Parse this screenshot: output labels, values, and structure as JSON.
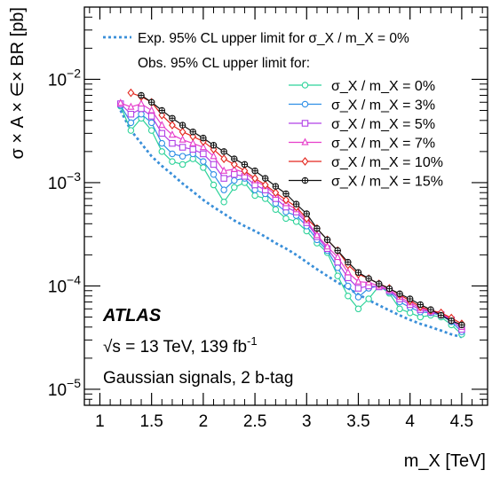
{
  "chart_data": {
    "type": "line",
    "xlabel": "m_X [TeV]",
    "ylabel": "σ × A × ∈× BR [pb]",
    "xlim": [
      0.85,
      4.75
    ],
    "ylim": [
      7e-06,
      0.05
    ],
    "xscale": "linear",
    "yscale": "log",
    "grid": false,
    "xticks": [
      1,
      1.5,
      2,
      2.5,
      3,
      3.5,
      4,
      4.5
    ],
    "xtick_labels": [
      "1",
      "1.5",
      "2",
      "2.5",
      "3",
      "3.5",
      "4",
      "4.5"
    ],
    "yticks": [
      1e-05,
      0.0001,
      0.001,
      0.01
    ],
    "legend_position": "top-right",
    "legend_header": "Obs. 95% CL upper limit for:",
    "annotations": {
      "experiment": "ATLAS",
      "energy": "√s = 13 TeV, 139 fb",
      "energy_sup": "-1",
      "selection": "Gaussian signals, 2 b-tag"
    },
    "expected": {
      "name": "Exp. 95% CL upper limit for σ_X / m_X = 0%",
      "color": "#3a8fd9",
      "style": "dotted",
      "x": [
        1.2,
        1.3,
        1.4,
        1.5,
        1.6,
        1.7,
        1.8,
        1.9,
        2.0,
        2.1,
        2.2,
        2.3,
        2.4,
        2.5,
        2.6,
        2.7,
        2.8,
        2.9,
        3.0,
        3.1,
        3.2,
        3.3,
        3.4,
        3.5,
        3.6,
        3.7,
        3.8,
        3.9,
        4.0,
        4.1,
        4.2,
        4.3,
        4.4,
        4.5
      ],
      "y": [
        0.005,
        0.0032,
        0.0024,
        0.0018,
        0.00145,
        0.0012,
        0.00098,
        0.00082,
        0.00068,
        0.00058,
        0.0005,
        0.00043,
        0.00038,
        0.00034,
        0.0003,
        0.00026,
        0.00023,
        0.0002,
        0.00017,
        0.000145,
        0.000125,
        0.000108,
        9.5e-05,
        8.3e-05,
        7.3e-05,
        6.5e-05,
        5.8e-05,
        5.2e-05,
        4.7e-05,
        4.3e-05,
        4e-05,
        3.7e-05,
        3.4e-05,
        3.2e-05
      ]
    },
    "series": [
      {
        "name": "σ_X / m_X = 0%",
        "color": "#2ed39a",
        "marker": "circle",
        "x": [
          1.2,
          1.3,
          1.4,
          1.5,
          1.6,
          1.7,
          1.8,
          1.9,
          2.0,
          2.1,
          2.2,
          2.3,
          2.4,
          2.5,
          2.6,
          2.7,
          2.8,
          2.9,
          3.0,
          3.1,
          3.2,
          3.3,
          3.4,
          3.5,
          3.6,
          3.7,
          3.8,
          3.9,
          4.0,
          4.1,
          4.2,
          4.3,
          4.4,
          4.5
        ],
        "y": [
          0.0055,
          0.0032,
          0.0042,
          0.0032,
          0.002,
          0.0016,
          0.0015,
          0.0017,
          0.0014,
          0.00095,
          0.00065,
          0.0009,
          0.001,
          0.00075,
          0.0007,
          0.00055,
          0.00045,
          0.00042,
          0.00034,
          0.00026,
          0.00021,
          0.000125,
          8e-05,
          6e-05,
          7.5e-05,
          0.0001,
          8.5e-05,
          6e-05,
          5.5e-05,
          5e-05,
          5.2e-05,
          5e-05,
          4.2e-05,
          3.4e-05
        ]
      },
      {
        "name": "σ_X / m_X = 3%",
        "color": "#2f8fe6",
        "marker": "circle",
        "x": [
          1.2,
          1.3,
          1.4,
          1.5,
          1.6,
          1.7,
          1.8,
          1.9,
          2.0,
          2.1,
          2.2,
          2.3,
          2.4,
          2.5,
          2.6,
          2.7,
          2.8,
          2.9,
          3.0,
          3.1,
          3.2,
          3.3,
          3.4,
          3.5,
          3.6,
          3.7,
          3.8,
          3.9,
          4.0,
          4.1,
          4.2,
          4.3,
          4.4,
          4.5
        ],
        "y": [
          0.0056,
          0.0038,
          0.0046,
          0.0038,
          0.0024,
          0.0019,
          0.0018,
          0.0019,
          0.0016,
          0.0012,
          0.00085,
          0.00105,
          0.0011,
          0.00085,
          0.00078,
          0.00063,
          0.00052,
          0.00048,
          0.00038,
          0.00028,
          0.00022,
          0.00015,
          0.0001,
          7.8e-05,
          9.5e-05,
          0.0001,
          8.8e-05,
          7e-05,
          6.2e-05,
          5.6e-05,
          5.5e-05,
          5.2e-05,
          4.5e-05,
          3.6e-05
        ]
      },
      {
        "name": "σ_X / m_X = 5%",
        "color": "#b040e6",
        "marker": "square",
        "x": [
          1.2,
          1.3,
          1.4,
          1.5,
          1.6,
          1.7,
          1.8,
          1.9,
          2.0,
          2.1,
          2.2,
          2.3,
          2.4,
          2.5,
          2.6,
          2.7,
          2.8,
          2.9,
          3.0,
          3.1,
          3.2,
          3.3,
          3.4,
          3.5,
          3.6,
          3.7,
          3.8,
          3.9,
          4.0,
          4.1,
          4.2,
          4.3,
          4.4,
          4.5
        ],
        "y": [
          0.0058,
          0.0046,
          0.0052,
          0.0044,
          0.003,
          0.0024,
          0.0022,
          0.0021,
          0.0019,
          0.0015,
          0.0011,
          0.0012,
          0.00115,
          0.00095,
          0.00085,
          0.0007,
          0.00058,
          0.00052,
          0.00041,
          0.0003,
          0.00023,
          0.00017,
          0.00012,
          9.5e-05,
          0.0001,
          9.8e-05,
          9e-05,
          7.5e-05,
          6.6e-05,
          5.9e-05,
          5.6e-05,
          5.3e-05,
          4.7e-05,
          3.8e-05
        ]
      },
      {
        "name": "σ_X / m_X = 7%",
        "color": "#e63ecb",
        "marker": "triangle",
        "x": [
          1.2,
          1.3,
          1.4,
          1.5,
          1.6,
          1.7,
          1.8,
          1.9,
          2.0,
          2.1,
          2.2,
          2.3,
          2.4,
          2.5,
          2.6,
          2.7,
          2.8,
          2.9,
          3.0,
          3.1,
          3.2,
          3.3,
          3.4,
          3.5,
          3.6,
          3.7,
          3.8,
          3.9,
          4.0,
          4.1,
          4.2,
          4.3,
          4.4,
          4.5
        ],
        "y": [
          0.0059,
          0.0054,
          0.0058,
          0.005,
          0.0036,
          0.0029,
          0.0026,
          0.0024,
          0.0022,
          0.0018,
          0.0013,
          0.00135,
          0.00125,
          0.00105,
          0.00092,
          0.00076,
          0.00063,
          0.00055,
          0.00043,
          0.00031,
          0.00024,
          0.00019,
          0.000135,
          0.00011,
          0.000108,
          0.0001,
          9.2e-05,
          7.8e-05,
          6.9e-05,
          6.1e-05,
          5.7e-05,
          5.4e-05,
          4.8e-05,
          4e-05
        ]
      },
      {
        "name": "σ_X / m_X = 10%",
        "color": "#e3261d",
        "marker": "diamond",
        "x": [
          1.3,
          1.4,
          1.5,
          1.6,
          1.7,
          1.8,
          1.9,
          2.0,
          2.1,
          2.2,
          2.3,
          2.4,
          2.5,
          2.6,
          2.7,
          2.8,
          2.9,
          3.0,
          3.1,
          3.2,
          3.3,
          3.4,
          3.5,
          3.6,
          3.7,
          3.8,
          3.9,
          4.0,
          4.1,
          4.2,
          4.3,
          4.4,
          4.5
        ],
        "y": [
          0.0074,
          0.0068,
          0.006,
          0.0045,
          0.0036,
          0.0031,
          0.0028,
          0.0025,
          0.0021,
          0.0017,
          0.0015,
          0.0013,
          0.0011,
          0.00095,
          0.0008,
          0.00068,
          0.00058,
          0.00045,
          0.00036,
          0.00028,
          0.00022,
          0.00016,
          0.00013,
          0.000118,
          0.000105,
          9.5e-05,
          8.2e-05,
          7.2e-05,
          6.3e-05,
          5.8e-05,
          5.5e-05,
          4.9e-05,
          4.3e-05
        ]
      },
      {
        "name": "σ_X / m_X = 15%",
        "color": "#111111",
        "marker": "cross",
        "x": [
          1.4,
          1.5,
          1.6,
          1.7,
          1.8,
          1.9,
          2.0,
          2.1,
          2.2,
          2.3,
          2.4,
          2.5,
          2.6,
          2.7,
          2.8,
          2.9,
          3.0,
          3.1,
          3.2,
          3.3,
          3.4,
          3.5,
          3.6,
          3.7,
          3.8,
          3.9,
          4.0,
          4.1,
          4.2,
          4.3,
          4.4,
          4.5
        ],
        "y": [
          0.007,
          0.006,
          0.005,
          0.0042,
          0.0036,
          0.0031,
          0.0027,
          0.0023,
          0.002,
          0.0017,
          0.0015,
          0.0013,
          0.0011,
          0.00092,
          0.00078,
          0.00062,
          0.0005,
          0.00036,
          0.00028,
          0.00022,
          0.00017,
          0.000135,
          0.000118,
          0.000105,
          9.4e-05,
          8.4e-05,
          7.5e-05,
          6.6e-05,
          5.9e-05,
          5.2e-05,
          4.6e-05,
          4.2e-05
        ]
      }
    ]
  }
}
